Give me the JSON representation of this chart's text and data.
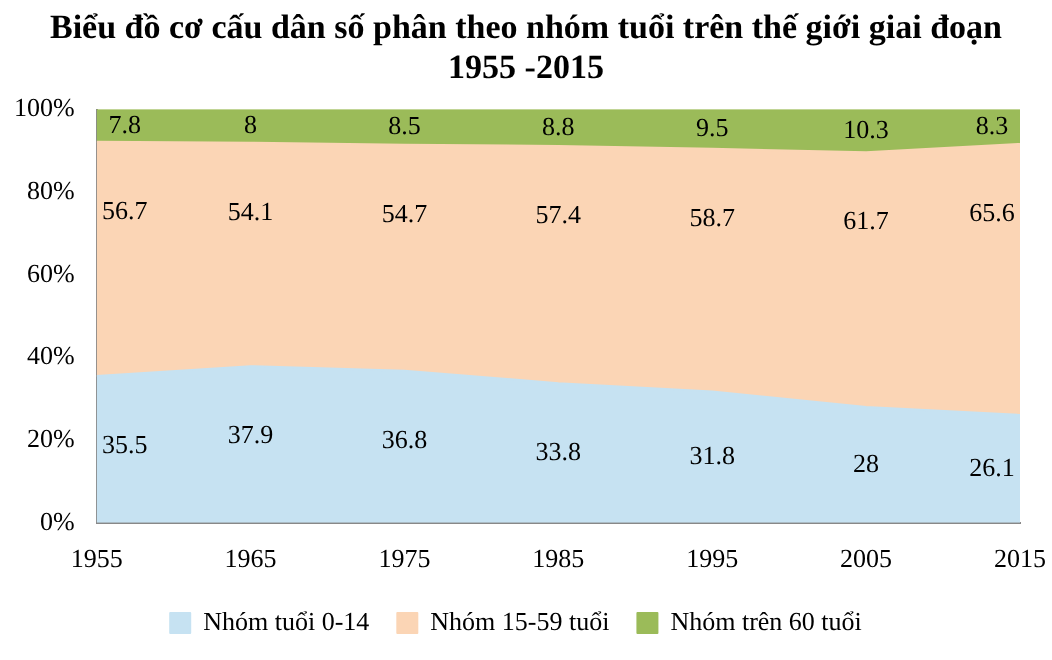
{
  "chart_data": {
    "type": "area",
    "stacked": true,
    "title": "Biểu đồ cơ cấu dân số phân theo nhóm tuổi trên thế giới giai đoạn 1955 -2015",
    "x": [
      1955,
      1965,
      1975,
      1985,
      1995,
      2005,
      2015
    ],
    "series": [
      {
        "name": "Nhóm tuổi 0-14",
        "color": "#c6e2f2",
        "values": [
          35.5,
          37.9,
          36.8,
          33.8,
          31.8,
          28,
          26.1
        ]
      },
      {
        "name": "Nhóm 15-59 tuổi",
        "color": "#fbd5b5",
        "values": [
          56.7,
          54.1,
          54.7,
          57.4,
          58.7,
          61.7,
          65.6
        ]
      },
      {
        "name": "Nhóm trên 60 tuổi",
        "color": "#9bbb59",
        "values": [
          7.8,
          8,
          8.5,
          8.8,
          9.5,
          10.3,
          8.3
        ]
      }
    ],
    "xlim": [
      1955,
      2015
    ],
    "xticks": [
      1955,
      1965,
      1975,
      1985,
      1995,
      2005,
      2015
    ],
    "ylim": [
      0,
      100
    ],
    "yticks": [
      {
        "value": 0,
        "label": "0%"
      },
      {
        "value": 20,
        "label": "20%"
      },
      {
        "value": 40,
        "label": "40%"
      },
      {
        "value": 60,
        "label": "60%"
      },
      {
        "value": 80,
        "label": "80%"
      },
      {
        "value": 100,
        "label": "100%"
      }
    ],
    "grid": false,
    "legend": "bottom",
    "data_labels": true
  }
}
